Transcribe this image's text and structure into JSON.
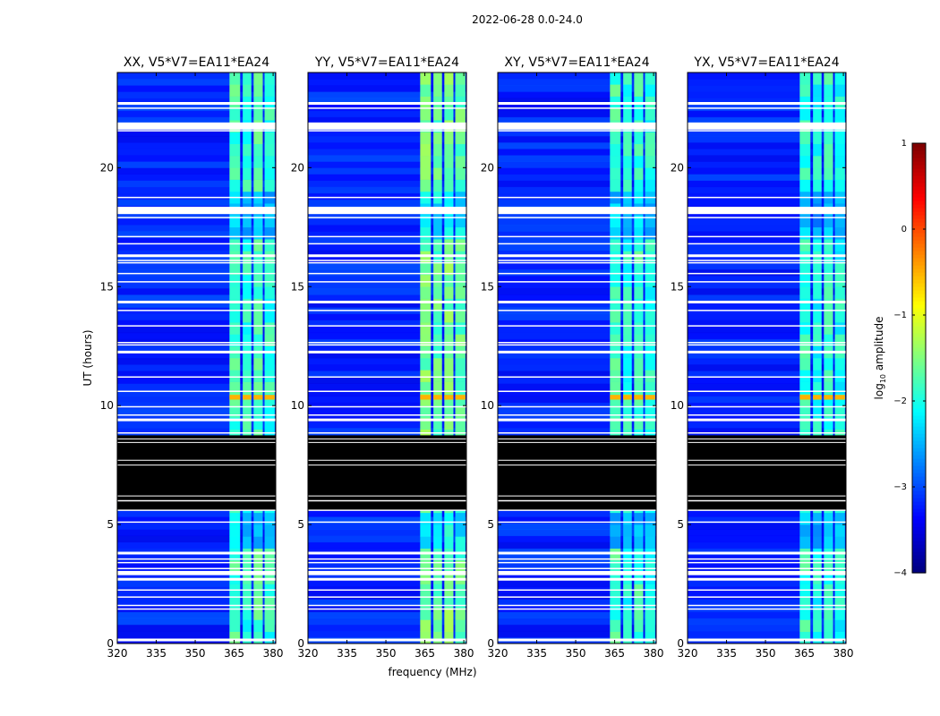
{
  "figure_title": "2022-06-28 0.0-24.0",
  "chart_data": {
    "type": "heatmap",
    "title": "2022-06-28 0.0-24.0",
    "xlabel": "frequency (MHz)",
    "ylabel": "UT (hours)",
    "xlim": [
      320,
      381
    ],
    "ylim": [
      0,
      24
    ],
    "xticks": [
      320,
      335,
      350,
      365,
      380
    ],
    "yticks": [
      0,
      5,
      10,
      15,
      20
    ],
    "panels": [
      {
        "name": "XX",
        "title": "XX, V5*V7=EA11*EA24"
      },
      {
        "name": "YY",
        "title": "YY, V5*V7=EA11*EA24"
      },
      {
        "name": "XY",
        "title": "XY, V5*V7=EA11*EA24"
      },
      {
        "name": "YX",
        "title": "YX, V5*V7=EA11*EA24"
      }
    ],
    "colorbar": {
      "label": "log10 amplitude",
      "label_main": "log",
      "label_sub": "10",
      "label_rest": " amplitude",
      "min": -4,
      "max": 1,
      "ticks": [
        -4,
        -3,
        -2,
        -1,
        0,
        1
      ],
      "tick_labels": [
        "−4",
        "−3",
        "−2",
        "−1",
        "0",
        "1"
      ],
      "colormap": "jet"
    },
    "signal_band_mhz": [
      363,
      381
    ],
    "signal_channels_mhz": [
      [
        363.2,
        367.3
      ],
      [
        368.3,
        371.6
      ],
      [
        372.5,
        376.0
      ],
      [
        376.7,
        380.6
      ]
    ],
    "flagged_time_ranges_hours": [
      [
        5.6,
        8.75
      ]
    ],
    "gap_times_hours": [
      0.15,
      1.45,
      1.6,
      1.95,
      2.25,
      2.7,
      2.9,
      3.15,
      3.4,
      3.55,
      3.8,
      5.1,
      5.6,
      6.0,
      8.85,
      9.4,
      9.6,
      9.95,
      10.6,
      11.2,
      12.25,
      12.55,
      12.65,
      13.35,
      14.0,
      14.35,
      15.2,
      15.55,
      16.0,
      16.1,
      16.3,
      16.8,
      17.1,
      17.9,
      18.1,
      18.3,
      18.75,
      21.55,
      21.8,
      22.5,
      22.7
    ],
    "burst_times_hours": [
      [
        10.25,
        10.45
      ]
    ]
  }
}
